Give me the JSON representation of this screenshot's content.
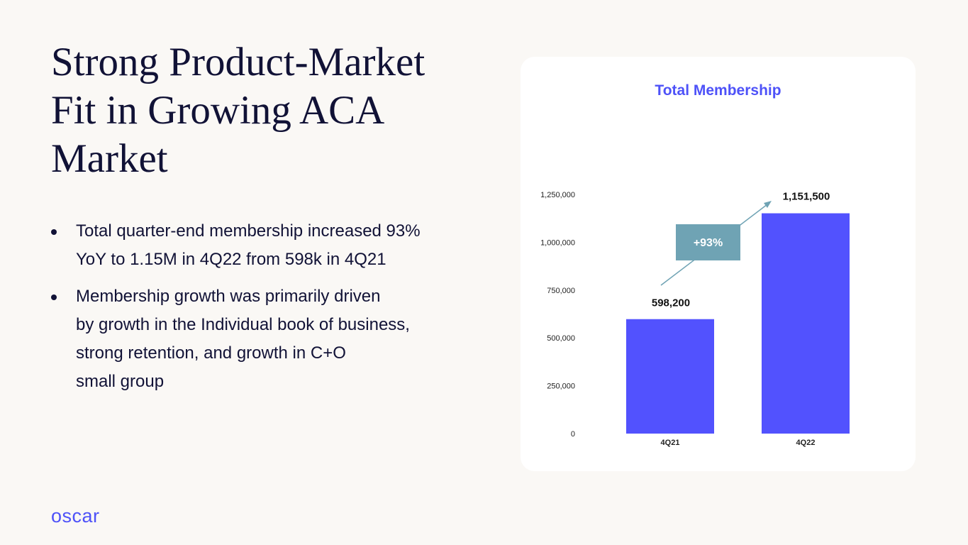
{
  "slide": {
    "title": "Strong Product-Market Fit in Growing ACA Market",
    "bullets": [
      "Total quarter-end membership increased 93%\nYoY to 1.15M in 4Q22 from 598k in 4Q21",
      "Membership growth was primarily driven\nby growth in the Individual book of business,\nstrong retention, and growth in C+O\nsmall group"
    ],
    "logo": "oscar"
  },
  "colors": {
    "background": "#faf8f5",
    "title_text": "#111236",
    "accent": "#4e52f8",
    "bar": "#5252fe",
    "annotation_box": "#6fa3b4",
    "card": "#ffffff"
  },
  "chart_data": {
    "type": "bar",
    "title": "Total Membership",
    "categories": [
      "4Q21",
      "4Q22"
    ],
    "values": [
      598200,
      1151500
    ],
    "data_labels": [
      "598,200",
      "1,151,500"
    ],
    "ylim": [
      0,
      1250000
    ],
    "yticks": [
      0,
      250000,
      500000,
      750000,
      1000000,
      1250000
    ],
    "ytick_labels": [
      "0",
      "250,000",
      "500,000",
      "750,000",
      "1,000,000",
      "1,250,000"
    ],
    "annotation": "+93%",
    "grid": false,
    "xlabel": "",
    "ylabel": ""
  }
}
